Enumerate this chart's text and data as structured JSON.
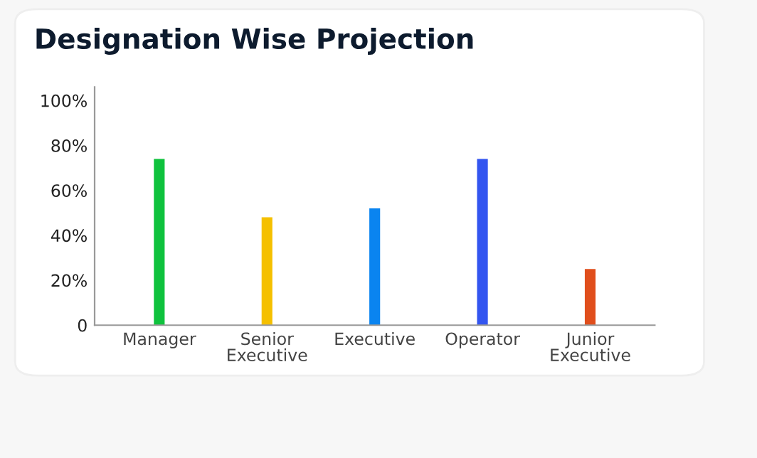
{
  "chart_data": {
    "type": "bar",
    "title": "Designation Wise Projection",
    "categories": [
      "Manager",
      "Senior\nExecutive",
      "Executive",
      "Operator",
      "Junior\nExecutive"
    ],
    "values": [
      74,
      48,
      52,
      74,
      25
    ],
    "colors": [
      "#0fc23d",
      "#f5c000",
      "#0a84f0",
      "#3355f0",
      "#e04e1c"
    ],
    "ylim": [
      0,
      106
    ],
    "yticks": [
      {
        "value": 0,
        "label": "0"
      },
      {
        "value": 20,
        "label": "20%"
      },
      {
        "value": 40,
        "label": "40%"
      },
      {
        "value": 60,
        "label": "60%"
      },
      {
        "value": 80,
        "label": "80%"
      },
      {
        "value": 100,
        "label": "100%"
      }
    ],
    "grid": false,
    "legend": false
  }
}
